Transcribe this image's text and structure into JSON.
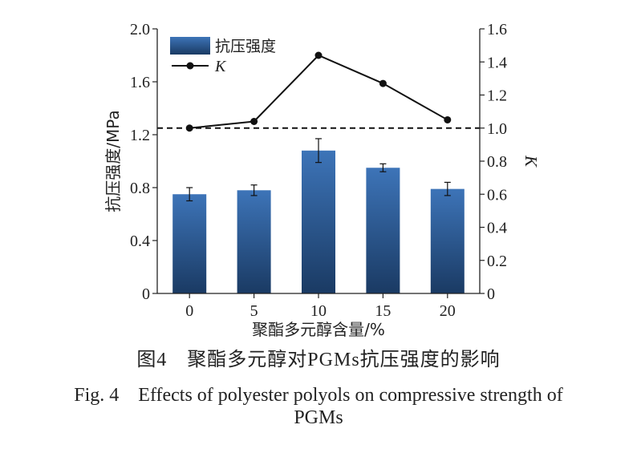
{
  "chart_data": {
    "type": "bar",
    "categories": [
      "0",
      "5",
      "10",
      "15",
      "20"
    ],
    "series": [
      {
        "name": "抗压强度",
        "kind": "bar",
        "axis": "left",
        "values": [
          0.75,
          0.78,
          1.08,
          0.95,
          0.79
        ],
        "errors": [
          0.05,
          0.04,
          0.09,
          0.03,
          0.05
        ]
      },
      {
        "name": "K",
        "kind": "line",
        "axis": "right",
        "values": [
          1.0,
          1.04,
          1.44,
          1.27,
          1.05
        ]
      }
    ],
    "reference_line": {
      "axis": "right",
      "value": 1.0,
      "style": "dashed"
    },
    "xlabel": "聚酯多元醇含量/%",
    "ylabel_left": "抗压强度/MPa",
    "ylabel_right": "K",
    "ylim_left": [
      0,
      2.0
    ],
    "ylim_right": [
      0,
      1.6
    ],
    "yticks_left": [
      "0",
      "0.4",
      "0.8",
      "1.2",
      "1.6",
      "2.0"
    ],
    "yticks_right": [
      "0",
      "0.2",
      "0.4",
      "0.6",
      "0.8",
      "1.0",
      "1.2",
      "1.4",
      "1.6"
    ],
    "legend": {
      "position": "top-left",
      "entries": [
        "抗压强度",
        "K"
      ]
    },
    "colors": {
      "bar_top": "#3d74b8",
      "bar_bottom": "#1a3a63",
      "line": "#111111",
      "axis": "#222222"
    }
  },
  "caption": {
    "cn": "图4　聚酯多元醇对PGMs抗压强度的影响",
    "en_line1": "Fig. 4　Effects of polyester polyols on compressive strength of",
    "en_line2": "PGMs"
  }
}
